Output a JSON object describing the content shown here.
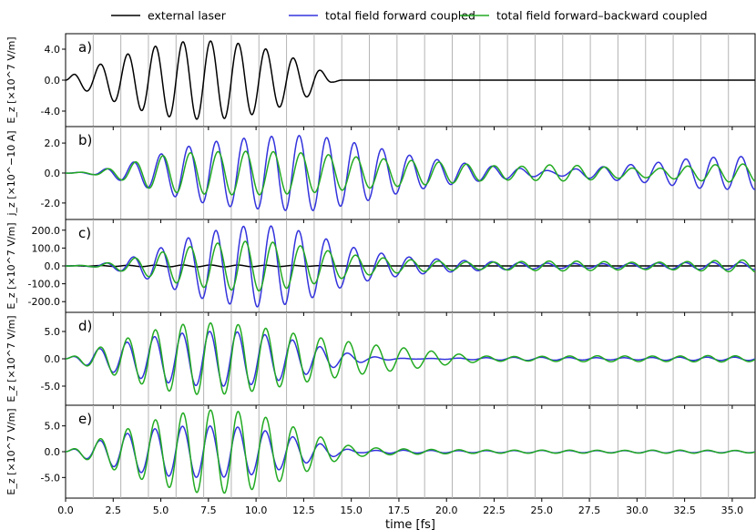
{
  "chart_data": {
    "type": "line",
    "xlabel": "time [fs]",
    "xlim": [
      0,
      36.2
    ],
    "x_ticks": [
      "0.0",
      "2.5",
      "5.0",
      "7.5",
      "10.0",
      "12.5",
      "15.0",
      "17.5",
      "20.0",
      "22.5",
      "25.0",
      "27.5",
      "30.0",
      "32.5",
      "35.0"
    ],
    "x_tick_values": [
      0,
      2.5,
      5,
      7.5,
      10,
      12.5,
      15,
      17.5,
      20,
      22.5,
      25,
      27.5,
      30,
      32.5,
      35
    ],
    "vertical_gridlines_at": [
      1.45,
      2.9,
      4.35,
      5.8,
      7.25,
      8.7,
      10.15,
      11.6,
      13.05,
      14.5,
      15.95,
      17.4,
      18.85,
      20.3,
      21.75,
      23.2,
      24.65,
      26.1,
      27.55,
      29.0,
      30.45,
      31.9,
      33.35,
      34.8
    ],
    "legend": {
      "placement": "top",
      "entries": [
        {
          "label": "external laser",
          "color": "#000000"
        },
        {
          "label": "total field forward coupled",
          "color": "#3333dd"
        },
        {
          "label": "total field forward–backward coupled",
          "color": "#22aa22"
        }
      ]
    },
    "panels": [
      {
        "tag": "a)",
        "ylabel": "E_z [×10^7 V/m]",
        "ylim": [
          -6.0,
          6.0
        ],
        "ytick_labels": [
          "4.0",
          "0.0",
          "-4.0"
        ],
        "ytick_values": [
          4.0,
          0.0,
          -4.0
        ],
        "series": [
          {
            "color": "#000000",
            "period": 1.45,
            "phase": 0,
            "envelope": {
              "t": [
                0,
                0.5,
                1.45,
                2.9,
                4.35,
                5.8,
                7.25,
                8.7,
                10.15,
                11.6,
                13.05,
                14.0,
                14.5,
                36.2
              ],
              "a": [
                0,
                0.9,
                1.7,
                3.1,
                4.2,
                4.9,
                5.1,
                4.9,
                4.3,
                3.2,
                1.8,
                0.3,
                0,
                0
              ]
            }
          }
        ]
      },
      {
        "tag": "b)",
        "ylabel": "j_z [×10^−10 A]",
        "ylim": [
          -3.1,
          3.1
        ],
        "ytick_labels": [
          "2.0",
          "0.0",
          "-2.0"
        ],
        "ytick_values": [
          2.0,
          0.0,
          -2.0
        ],
        "series": [
          {
            "color": "#3333dd",
            "period": 1.45,
            "phase": -1.3,
            "envelope": {
              "t": [
                0,
                1.45,
                2.9,
                4.35,
                5.8,
                7.25,
                8.7,
                10.15,
                11.6,
                13.05,
                14.5,
                16.0,
                18.0,
                20.0,
                22.0,
                24.0,
                25.5,
                27.0,
                29.0,
                31.0,
                33.0,
                35.0,
                36.2
              ],
              "a": [
                0,
                0.1,
                0.5,
                1.0,
                1.6,
                2.0,
                2.25,
                2.4,
                2.5,
                2.5,
                2.2,
                1.8,
                1.2,
                0.8,
                0.5,
                0.3,
                0.15,
                0.3,
                0.5,
                0.7,
                1.0,
                1.1,
                1.1
              ]
            }
          },
          {
            "color": "#22aa22",
            "period": 1.45,
            "phase": -1.7,
            "envelope": {
              "t": [
                0,
                1.45,
                2.9,
                4.35,
                5.8,
                7.25,
                8.7,
                10.15,
                11.6,
                13.05,
                14.5,
                16.0,
                18.0,
                20.0,
                22.0,
                24.0,
                25.5,
                27.0,
                29.0,
                31.0,
                33.0,
                35.0,
                36.2
              ],
              "a": [
                0,
                0.1,
                0.45,
                1.0,
                1.3,
                1.4,
                1.45,
                1.45,
                1.4,
                1.3,
                1.15,
                1.0,
                0.85,
                0.7,
                0.5,
                0.45,
                0.55,
                0.5,
                0.35,
                0.3,
                0.5,
                0.6,
                0.6
              ]
            }
          }
        ]
      },
      {
        "tag": "c)",
        "ylabel": "E_z [×10^7 V/m]",
        "ylim": [
          -260,
          260
        ],
        "ytick_labels": [
          "200.0",
          "100.0",
          "0.0",
          "-100.0",
          "-200.0"
        ],
        "ytick_values": [
          200,
          100,
          0,
          -100,
          -200
        ],
        "series": [
          {
            "color": "#000000",
            "period": 1.45,
            "phase": 0,
            "envelope": {
              "t": [
                0,
                1.45,
                2.9,
                4.35,
                5.8,
                7.25,
                8.7,
                10.15,
                11.6,
                13.05,
                14.5,
                36.2
              ],
              "a": [
                0,
                2,
                3,
                4,
                5,
                5,
                5,
                4,
                3,
                2,
                0,
                0
              ]
            }
          },
          {
            "color": "#3333dd",
            "period": 1.45,
            "phase": -1.2,
            "envelope": {
              "t": [
                0,
                1.45,
                2.9,
                4.35,
                5.8,
                7.25,
                8.7,
                10.15,
                11.6,
                13.05,
                14.5,
                16.0,
                18.0,
                20.0,
                22.0,
                24.0,
                26.0,
                28.0,
                30.0,
                32.0,
                34.0,
                36.2
              ],
              "a": [
                0,
                5,
                30,
                75,
                135,
                185,
                215,
                230,
                215,
                175,
                120,
                80,
                50,
                35,
                25,
                18,
                14,
                12,
                15,
                18,
                20,
                20
              ]
            }
          },
          {
            "color": "#22aa22",
            "period": 1.45,
            "phase": -1.6,
            "envelope": {
              "t": [
                0,
                1.45,
                2.9,
                4.35,
                5.8,
                7.25,
                8.7,
                10.15,
                11.6,
                13.05,
                14.5,
                16.0,
                18.0,
                20.0,
                22.0,
                24.0,
                26.0,
                28.0,
                30.0,
                32.0,
                34.0,
                36.2
              ],
              "a": [
                0,
                5,
                28,
                60,
                95,
                120,
                135,
                140,
                125,
                100,
                70,
                50,
                35,
                25,
                20,
                25,
                28,
                25,
                20,
                22,
                30,
                35
              ]
            }
          }
        ]
      },
      {
        "tag": "d)",
        "ylabel": "E_z [×10^7 V/m]",
        "ylim": [
          -8.5,
          8.5
        ],
        "ytick_labels": [
          "5.0",
          "0.0",
          "-5.0"
        ],
        "ytick_values": [
          5.0,
          0.0,
          -5.0
        ],
        "series": [
          {
            "color": "#3333dd",
            "period": 1.45,
            "phase": 0.2,
            "envelope": {
              "t": [
                0,
                1.45,
                2.9,
                4.35,
                5.8,
                7.25,
                8.7,
                10.15,
                11.6,
                13.05,
                14.5,
                16.0,
                17.5,
                18.5,
                20.0,
                22.0,
                24.0,
                26.0,
                28.0,
                30.0,
                32.0,
                34.0,
                36.2
              ],
              "a": [
                0,
                1.6,
                2.8,
                3.9,
                4.6,
                5.0,
                5.0,
                4.6,
                3.7,
                2.5,
                1.2,
                0.4,
                0.1,
                0.05,
                0.1,
                0.2,
                0.3,
                0.25,
                0.2,
                0.2,
                0.3,
                0.3,
                0.3
              ]
            }
          },
          {
            "color": "#22aa22",
            "period": 1.45,
            "phase": 0.0,
            "envelope": {
              "t": [
                0,
                1.45,
                2.9,
                4.35,
                5.8,
                7.25,
                8.7,
                10.15,
                11.6,
                13.05,
                14.5,
                16.0,
                17.5,
                19.0,
                20.5,
                22.0,
                24.0,
                26.0,
                28.0,
                30.0,
                32.0,
                34.0,
                36.2
              ],
              "a": [
                0,
                1.7,
                3.4,
                5.0,
                6.2,
                6.6,
                6.4,
                5.8,
                4.9,
                4.0,
                3.3,
                2.6,
                2.1,
                1.5,
                0.9,
                0.5,
                0.4,
                0.5,
                0.55,
                0.5,
                0.5,
                0.6,
                0.5
              ]
            }
          }
        ]
      },
      {
        "tag": "e)",
        "ylabel": "E_z [×10^7 V/m]",
        "ylim": [
          -9.0,
          9.0
        ],
        "ytick_labels": [
          "5.0",
          "0.0",
          "-5.0"
        ],
        "ytick_values": [
          5.0,
          0.0,
          -5.0
        ],
        "series": [
          {
            "color": "#3333dd",
            "period": 1.45,
            "phase": 0.1,
            "envelope": {
              "t": [
                0,
                1.45,
                2.9,
                4.35,
                5.8,
                7.25,
                8.7,
                10.15,
                11.6,
                13.05,
                14.5,
                15.5,
                17.0,
                19.0,
                21.0,
                23.0,
                25.0,
                27.0,
                29.0,
                31.0,
                33.0,
                35.0,
                36.2
              ],
              "a": [
                0,
                1.8,
                3.3,
                4.3,
                4.9,
                5.0,
                4.9,
                4.3,
                3.2,
                1.8,
                0.6,
                0.2,
                0.3,
                0.25,
                0.2,
                0.2,
                0.25,
                0.2,
                0.2,
                0.25,
                0.2,
                0.2,
                0.2
              ]
            }
          },
          {
            "color": "#22aa22",
            "period": 1.45,
            "phase": 0.0,
            "envelope": {
              "t": [
                0,
                1.45,
                2.9,
                4.35,
                5.8,
                7.25,
                8.7,
                10.15,
                11.6,
                13.05,
                14.5,
                15.5,
                17.0,
                19.0,
                21.0,
                23.0,
                25.0,
                27.0,
                29.0,
                31.0,
                33.0,
                35.0,
                36.2
              ],
              "a": [
                0,
                2.0,
                4.0,
                5.8,
                7.3,
                8.1,
                8.0,
                7.1,
                5.3,
                3.3,
                1.4,
                0.9,
                0.6,
                0.45,
                0.35,
                0.3,
                0.3,
                0.3,
                0.25,
                0.3,
                0.3,
                0.25,
                0.25
              ]
            }
          }
        ]
      }
    ]
  }
}
